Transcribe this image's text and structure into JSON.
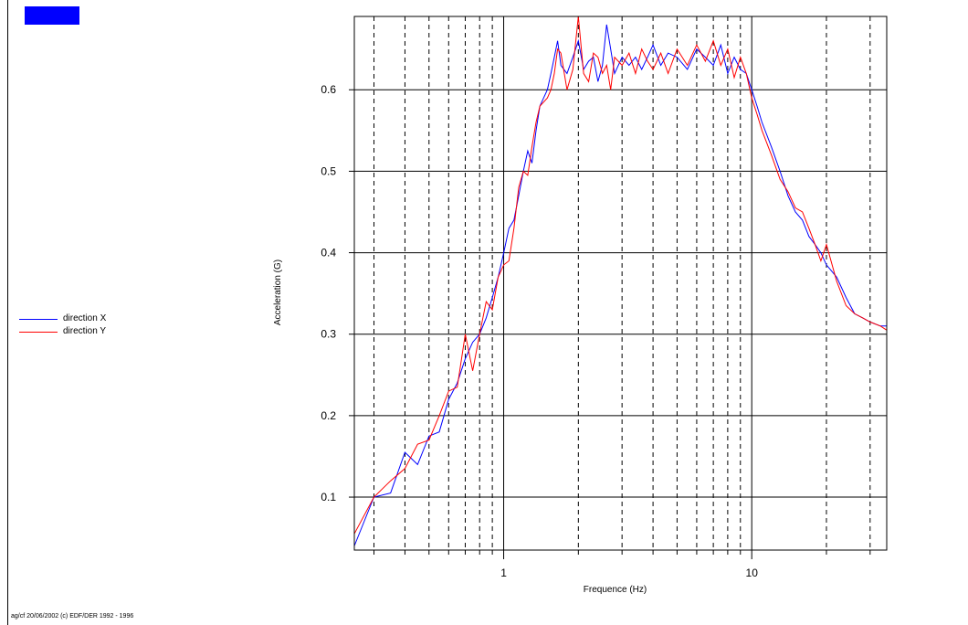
{
  "header": {
    "tab_color": "#0000ff"
  },
  "legend": {
    "items": [
      {
        "label": "direction X",
        "color": "#0000ff"
      },
      {
        "label": "direction Y",
        "color": "#ff0000"
      }
    ]
  },
  "footer": {
    "text": "ag/cf 20/06/2002 (c) EDF/DER 1992 - 1996"
  },
  "chart_data": {
    "type": "line",
    "xscale": "log",
    "xlim": [
      0.25,
      35
    ],
    "ylim": [
      0.035,
      0.69
    ],
    "xlabel": "Frequence (Hz)",
    "ylabel": "Acceleration (G)",
    "x_tick_labels": [
      "1",
      "10"
    ],
    "x_major_ticks": [
      1,
      10
    ],
    "x_minor_gridlines": [
      0.3,
      0.4,
      0.5,
      0.6,
      0.7,
      0.8,
      0.9,
      2,
      3,
      4,
      5,
      6,
      7,
      8,
      9,
      20,
      30
    ],
    "y_ticks": [
      0.1,
      0.2,
      0.3,
      0.4,
      0.5,
      0.6
    ],
    "y_tick_labels": [
      "0.1",
      "0.2",
      "0.3",
      "0.4",
      "0.5",
      "0.6"
    ],
    "grid": true,
    "legend_position": "left",
    "series": [
      {
        "name": "direction X",
        "color": "#0000ff",
        "points": [
          [
            0.25,
            0.04
          ],
          [
            0.3,
            0.1
          ],
          [
            0.35,
            0.105
          ],
          [
            0.4,
            0.155
          ],
          [
            0.45,
            0.14
          ],
          [
            0.5,
            0.175
          ],
          [
            0.55,
            0.18
          ],
          [
            0.6,
            0.22
          ],
          [
            0.65,
            0.24
          ],
          [
            0.7,
            0.27
          ],
          [
            0.75,
            0.29
          ],
          [
            0.8,
            0.3
          ],
          [
            0.85,
            0.32
          ],
          [
            0.9,
            0.345
          ],
          [
            0.95,
            0.37
          ],
          [
            1.0,
            0.4
          ],
          [
            1.05,
            0.43
          ],
          [
            1.1,
            0.44
          ],
          [
            1.15,
            0.47
          ],
          [
            1.2,
            0.5
          ],
          [
            1.25,
            0.525
          ],
          [
            1.3,
            0.51
          ],
          [
            1.35,
            0.55
          ],
          [
            1.4,
            0.58
          ],
          [
            1.5,
            0.6
          ],
          [
            1.55,
            0.62
          ],
          [
            1.6,
            0.64
          ],
          [
            1.65,
            0.66
          ],
          [
            1.7,
            0.63
          ],
          [
            1.8,
            0.62
          ],
          [
            1.9,
            0.64
          ],
          [
            2.0,
            0.66
          ],
          [
            2.1,
            0.625
          ],
          [
            2.2,
            0.635
          ],
          [
            2.3,
            0.64
          ],
          [
            2.4,
            0.61
          ],
          [
            2.5,
            0.63
          ],
          [
            2.6,
            0.68
          ],
          [
            2.7,
            0.65
          ],
          [
            2.8,
            0.62
          ],
          [
            3.0,
            0.64
          ],
          [
            3.2,
            0.63
          ],
          [
            3.4,
            0.64
          ],
          [
            3.6,
            0.625
          ],
          [
            3.8,
            0.64
          ],
          [
            4.0,
            0.655
          ],
          [
            4.3,
            0.63
          ],
          [
            4.6,
            0.645
          ],
          [
            5.0,
            0.64
          ],
          [
            5.5,
            0.625
          ],
          [
            6.0,
            0.65
          ],
          [
            6.5,
            0.64
          ],
          [
            7.0,
            0.63
          ],
          [
            7.5,
            0.655
          ],
          [
            8.0,
            0.62
          ],
          [
            8.5,
            0.64
          ],
          [
            9.0,
            0.625
          ],
          [
            9.5,
            0.62
          ],
          [
            10.0,
            0.6
          ],
          [
            10.5,
            0.58
          ],
          [
            11.0,
            0.56
          ],
          [
            12.0,
            0.53
          ],
          [
            13.0,
            0.5
          ],
          [
            14.0,
            0.47
          ],
          [
            15.0,
            0.45
          ],
          [
            16.0,
            0.44
          ],
          [
            17.0,
            0.42
          ],
          [
            18.0,
            0.41
          ],
          [
            19.0,
            0.4
          ],
          [
            20.0,
            0.385
          ],
          [
            22.0,
            0.37
          ],
          [
            24.0,
            0.345
          ],
          [
            26.0,
            0.325
          ],
          [
            28.0,
            0.32
          ],
          [
            30.0,
            0.315
          ],
          [
            33.0,
            0.31
          ],
          [
            35.0,
            0.31
          ]
        ]
      },
      {
        "name": "direction Y",
        "color": "#ff0000",
        "points": [
          [
            0.25,
            0.055
          ],
          [
            0.3,
            0.1
          ],
          [
            0.35,
            0.12
          ],
          [
            0.4,
            0.135
          ],
          [
            0.45,
            0.165
          ],
          [
            0.5,
            0.17
          ],
          [
            0.55,
            0.2
          ],
          [
            0.6,
            0.23
          ],
          [
            0.65,
            0.235
          ],
          [
            0.7,
            0.3
          ],
          [
            0.75,
            0.255
          ],
          [
            0.8,
            0.3
          ],
          [
            0.85,
            0.34
          ],
          [
            0.9,
            0.33
          ],
          [
            0.95,
            0.37
          ],
          [
            1.0,
            0.385
          ],
          [
            1.05,
            0.39
          ],
          [
            1.1,
            0.43
          ],
          [
            1.15,
            0.48
          ],
          [
            1.2,
            0.5
          ],
          [
            1.25,
            0.495
          ],
          [
            1.3,
            0.53
          ],
          [
            1.35,
            0.56
          ],
          [
            1.4,
            0.58
          ],
          [
            1.5,
            0.59
          ],
          [
            1.55,
            0.6
          ],
          [
            1.6,
            0.62
          ],
          [
            1.65,
            0.65
          ],
          [
            1.7,
            0.645
          ],
          [
            1.8,
            0.6
          ],
          [
            1.9,
            0.625
          ],
          [
            2.0,
            0.69
          ],
          [
            2.1,
            0.62
          ],
          [
            2.2,
            0.61
          ],
          [
            2.3,
            0.645
          ],
          [
            2.4,
            0.64
          ],
          [
            2.5,
            0.62
          ],
          [
            2.6,
            0.63
          ],
          [
            2.7,
            0.6
          ],
          [
            2.8,
            0.64
          ],
          [
            3.0,
            0.63
          ],
          [
            3.2,
            0.645
          ],
          [
            3.4,
            0.62
          ],
          [
            3.6,
            0.65
          ],
          [
            3.8,
            0.635
          ],
          [
            4.0,
            0.625
          ],
          [
            4.3,
            0.645
          ],
          [
            4.6,
            0.62
          ],
          [
            5.0,
            0.65
          ],
          [
            5.5,
            0.63
          ],
          [
            6.0,
            0.655
          ],
          [
            6.5,
            0.635
          ],
          [
            7.0,
            0.66
          ],
          [
            7.5,
            0.63
          ],
          [
            8.0,
            0.65
          ],
          [
            8.5,
            0.615
          ],
          [
            9.0,
            0.64
          ],
          [
            9.5,
            0.62
          ],
          [
            10.0,
            0.59
          ],
          [
            10.5,
            0.57
          ],
          [
            11.0,
            0.55
          ],
          [
            12.0,
            0.52
          ],
          [
            13.0,
            0.49
          ],
          [
            14.0,
            0.475
          ],
          [
            15.0,
            0.455
          ],
          [
            16.0,
            0.45
          ],
          [
            17.0,
            0.43
          ],
          [
            18.0,
            0.41
          ],
          [
            19.0,
            0.39
          ],
          [
            20.0,
            0.41
          ],
          [
            22.0,
            0.365
          ],
          [
            24.0,
            0.335
          ],
          [
            26.0,
            0.325
          ],
          [
            28.0,
            0.32
          ],
          [
            30.0,
            0.315
          ],
          [
            33.0,
            0.31
          ],
          [
            35.0,
            0.305
          ]
        ]
      }
    ]
  }
}
